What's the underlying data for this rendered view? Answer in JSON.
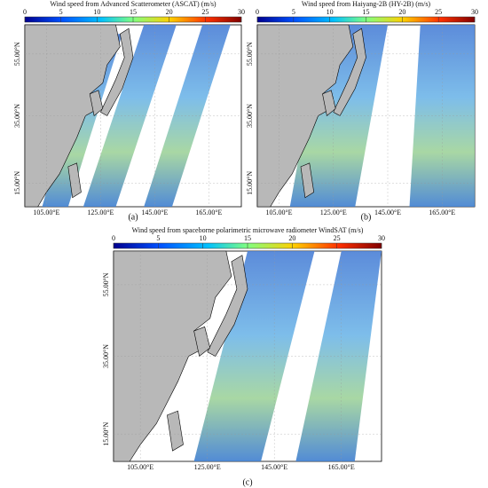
{
  "panels": [
    {
      "title": "Wind speed from Advanced Scatterometer (ASCAT) (m/s)",
      "colorbar": {
        "range": [
          0,
          30
        ],
        "ticks": [
          0,
          5,
          10,
          15,
          20,
          25,
          30
        ]
      },
      "lat_labels": [
        "55.00°N",
        "35.00°N",
        "15.00°N"
      ],
      "lon_labels": [
        "105.00°E",
        "125.00°E",
        "145.00°E",
        "165.00°E"
      ],
      "label": "(a)"
    },
    {
      "title": "Wind speed from Haiyang-2B (HY-2B) (m/s)",
      "colorbar": {
        "range": [
          0,
          30
        ],
        "ticks": [
          0,
          5,
          10,
          15,
          20,
          25,
          30
        ]
      },
      "lat_labels": [
        "55.00°N",
        "35.00°N",
        "15.00°N"
      ],
      "lon_labels": [
        "105.00°E",
        "125.00°E",
        "145.00°E",
        "165.00°E"
      ],
      "label": "(b)"
    },
    {
      "title": "Wind speed from spaceborne polarimetric microwave radiometer WindSAT (m/s)",
      "colorbar": {
        "range": [
          0,
          30
        ],
        "ticks": [
          0,
          5,
          10,
          15,
          20,
          25,
          30
        ]
      },
      "lat_labels": [
        "55.00°N",
        "35.00°N",
        "15.00°N"
      ],
      "lon_labels": [
        "105.00°E",
        "125.00°E",
        "145.00°E",
        "165.00°E"
      ],
      "label": "(c)"
    }
  ]
}
